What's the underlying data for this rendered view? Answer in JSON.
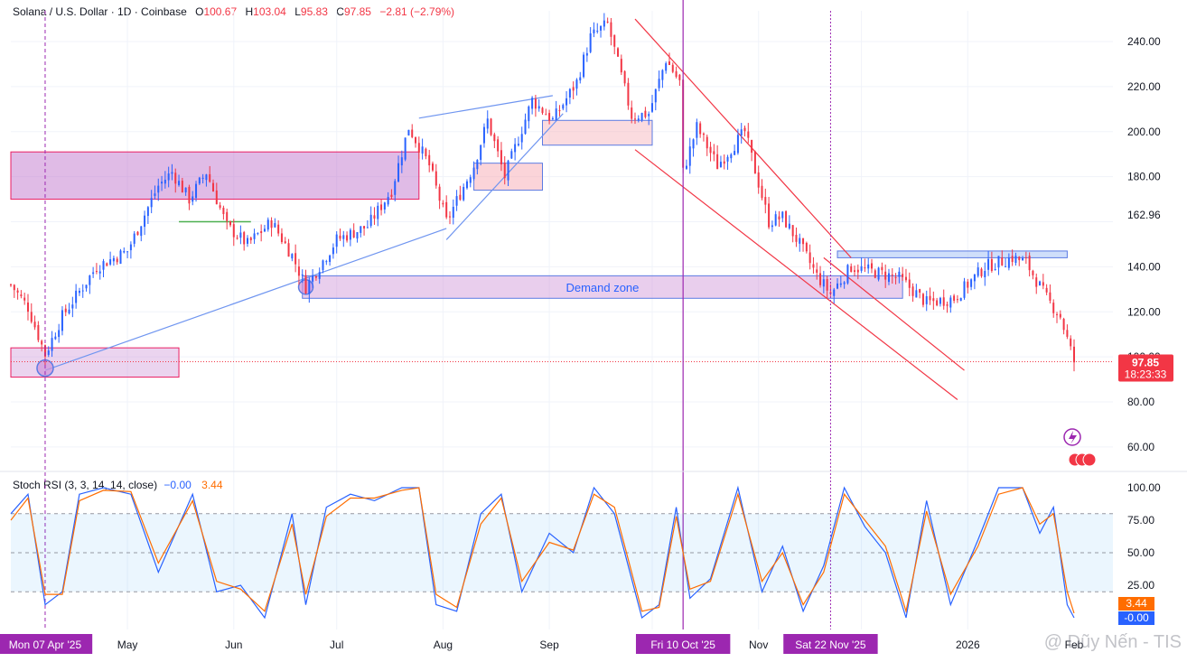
{
  "header": {
    "symbol": "Solana / U.S. Dollar · 1D · Coinbase",
    "o_label": "O",
    "o_value": "100.67",
    "h_label": "H",
    "h_value": "103.04",
    "l_label": "L",
    "l_value": "95.83",
    "c_label": "C",
    "c_value": "97.85",
    "change": "−2.81 (−2.79%)"
  },
  "price_tag": {
    "value": "97.85",
    "countdown": "18:23:33"
  },
  "highlight_level": "162.96",
  "annotation": {
    "demand_zone": "Demand zone"
  },
  "rsi_header": {
    "label": "Stoch RSI (3, 3, 14, 14, close)",
    "k_value": "−0.00",
    "d_value": "3.44"
  },
  "rsi_tags": {
    "d": "3.44",
    "k": "-0.00"
  },
  "watermark": "@ Dũy Nến - TIS",
  "colors": {
    "up": "#2962ff",
    "down": "#f23645",
    "k_line": "#2962ff",
    "d_line": "#ff6d00",
    "zone_purple": "#d9a9e3",
    "zone_pink": "#f7c9cf",
    "zone_blue": "#bcd3f7",
    "trend_red": "#f23645",
    "trend_blue": "#6f95f0"
  },
  "chart_data": [
    {
      "type": "candlestick",
      "ylim": [
        50,
        252
      ],
      "y_ticks": [
        "240.00",
        "220.00",
        "200.00",
        "180.00",
        "162.96",
        "140.00",
        "120.00",
        "100.00",
        "80.00",
        "60.00"
      ],
      "x_ticks": [
        "Mon 07 Apr '25",
        "May",
        "Jun",
        "Jul",
        "Aug",
        "Sep",
        "Fri 10 Oct '25",
        "Nov",
        "Sat 22 Nov '25",
        "2026",
        "Feb"
      ],
      "highlighted_x": [
        "Mon 07 Apr '25",
        "Fri 10 Oct '25",
        "Sat 22 Nov '25"
      ],
      "close_path": [
        [
          "2025-03-28",
          132
        ],
        [
          "2025-04-02",
          122
        ],
        [
          "2025-04-07",
          101
        ],
        [
          "2025-04-12",
          118
        ],
        [
          "2025-04-22",
          140
        ],
        [
          "2025-05-01",
          147
        ],
        [
          "2025-05-10",
          176
        ],
        [
          "2025-05-14",
          182
        ],
        [
          "2025-05-19",
          170
        ],
        [
          "2025-05-24",
          182
        ],
        [
          "2025-05-30",
          158
        ],
        [
          "2025-06-05",
          150
        ],
        [
          "2025-06-12",
          160
        ],
        [
          "2025-06-18",
          145
        ],
        [
          "2025-06-22",
          131
        ],
        [
          "2025-07-01",
          152
        ],
        [
          "2025-07-10",
          158
        ],
        [
          "2025-07-17",
          174
        ],
        [
          "2025-07-22",
          202
        ],
        [
          "2025-07-28",
          185
        ],
        [
          "2025-08-02",
          160
        ],
        [
          "2025-08-10",
          185
        ],
        [
          "2025-08-14",
          205
        ],
        [
          "2025-08-19",
          180
        ],
        [
          "2025-08-27",
          214
        ],
        [
          "2025-09-02",
          205
        ],
        [
          "2025-09-09",
          222
        ],
        [
          "2025-09-13",
          242
        ],
        [
          "2025-09-18",
          248
        ],
        [
          "2025-09-25",
          207
        ],
        [
          "2025-09-30",
          208
        ],
        [
          "2025-10-05",
          232
        ],
        [
          "2025-10-09",
          222
        ],
        [
          "2025-10-10",
          182
        ],
        [
          "2025-10-14",
          202
        ],
        [
          "2025-10-20",
          185
        ],
        [
          "2025-10-28",
          200
        ],
        [
          "2025-11-04",
          160
        ],
        [
          "2025-11-08",
          162
        ],
        [
          "2025-11-13",
          150
        ],
        [
          "2025-11-18",
          136
        ],
        [
          "2025-11-22",
          128
        ],
        [
          "2025-11-28",
          140
        ],
        [
          "2025-12-04",
          138
        ],
        [
          "2025-12-12",
          135
        ],
        [
          "2025-12-20",
          124
        ],
        [
          "2025-12-28",
          126
        ],
        [
          "2026-01-06",
          140
        ],
        [
          "2026-01-14",
          144
        ],
        [
          "2026-01-18",
          142
        ],
        [
          "2026-01-24",
          126
        ],
        [
          "2026-01-28",
          118
        ],
        [
          "2026-02-01",
          97.85
        ]
      ],
      "zones": [
        {
          "from": "2025-03-28",
          "to": "2025-07-25",
          "low": 170,
          "high": 191
        },
        {
          "from": "2025-03-28",
          "to": "2025-05-16",
          "low": 91,
          "high": 104
        },
        {
          "from": "2025-06-21",
          "to": "2025-12-13",
          "low": 126,
          "high": 136,
          "label": "Demand zone"
        },
        {
          "from": "2025-08-10",
          "to": "2025-08-30",
          "low": 174,
          "high": 186
        },
        {
          "from": "2025-08-30",
          "to": "2025-10-01",
          "low": 194,
          "high": 205
        },
        {
          "from": "2025-11-24",
          "to": "2026-01-30",
          "low": 144,
          "high": 147
        }
      ]
    },
    {
      "type": "line",
      "ylim": [
        -5,
        105
      ],
      "y_ticks": [
        "100.00",
        "75.00",
        "50.00",
        "25.00"
      ],
      "bands": [
        20,
        80
      ],
      "series": [
        {
          "name": "K",
          "x": [
            "2025-03-28",
            "2025-04-02",
            "2025-04-07",
            "2025-04-12",
            "2025-04-17",
            "2025-04-24",
            "2025-05-02",
            "2025-05-10",
            "2025-05-20",
            "2025-05-27",
            "2025-06-03",
            "2025-06-10",
            "2025-06-18",
            "2025-06-22",
            "2025-06-28",
            "2025-07-05",
            "2025-07-12",
            "2025-07-20",
            "2025-07-25",
            "2025-07-30",
            "2025-08-05",
            "2025-08-12",
            "2025-08-18",
            "2025-08-24",
            "2025-09-01",
            "2025-09-08",
            "2025-09-14",
            "2025-09-20",
            "2025-09-28",
            "2025-10-03",
            "2025-10-08",
            "2025-10-12",
            "2025-10-18",
            "2025-10-26",
            "2025-11-02",
            "2025-11-08",
            "2025-11-14",
            "2025-11-20",
            "2025-11-26",
            "2025-12-02",
            "2025-12-08",
            "2025-12-14",
            "2025-12-20",
            "2025-12-27",
            "2026-01-04",
            "2026-01-10",
            "2026-01-17",
            "2026-01-22",
            "2026-01-26",
            "2026-01-30",
            "2026-02-01"
          ],
          "values": [
            80,
            95,
            10,
            20,
            95,
            100,
            95,
            35,
            95,
            20,
            25,
            0,
            80,
            10,
            85,
            95,
            90,
            100,
            100,
            10,
            5,
            80,
            95,
            20,
            65,
            50,
            100,
            80,
            0,
            10,
            85,
            15,
            30,
            100,
            20,
            55,
            5,
            40,
            100,
            70,
            50,
            0,
            90,
            10,
            60,
            100,
            100,
            65,
            85,
            10,
            -0.0
          ]
        },
        {
          "name": "D",
          "x": [
            "2025-03-28",
            "2025-04-02",
            "2025-04-07",
            "2025-04-12",
            "2025-04-17",
            "2025-04-24",
            "2025-05-02",
            "2025-05-10",
            "2025-05-20",
            "2025-05-27",
            "2025-06-03",
            "2025-06-10",
            "2025-06-18",
            "2025-06-22",
            "2025-06-28",
            "2025-07-05",
            "2025-07-12",
            "2025-07-20",
            "2025-07-25",
            "2025-07-30",
            "2025-08-05",
            "2025-08-12",
            "2025-08-18",
            "2025-08-24",
            "2025-09-01",
            "2025-09-08",
            "2025-09-14",
            "2025-09-20",
            "2025-09-28",
            "2025-10-03",
            "2025-10-08",
            "2025-10-12",
            "2025-10-18",
            "2025-10-26",
            "2025-11-02",
            "2025-11-08",
            "2025-11-14",
            "2025-11-20",
            "2025-11-26",
            "2025-12-02",
            "2025-12-08",
            "2025-12-14",
            "2025-12-20",
            "2025-12-27",
            "2026-01-04",
            "2026-01-10",
            "2026-01-17",
            "2026-01-22",
            "2026-01-26",
            "2026-01-30",
            "2026-02-01"
          ],
          "values": [
            75,
            92,
            18,
            18,
            90,
            98,
            97,
            42,
            90,
            28,
            22,
            5,
            72,
            18,
            78,
            92,
            92,
            98,
            100,
            18,
            8,
            72,
            92,
            28,
            58,
            52,
            95,
            85,
            5,
            8,
            78,
            22,
            28,
            95,
            28,
            50,
            10,
            35,
            95,
            75,
            55,
            5,
            82,
            18,
            55,
            95,
            100,
            72,
            80,
            20,
            3.44
          ]
        }
      ]
    }
  ]
}
